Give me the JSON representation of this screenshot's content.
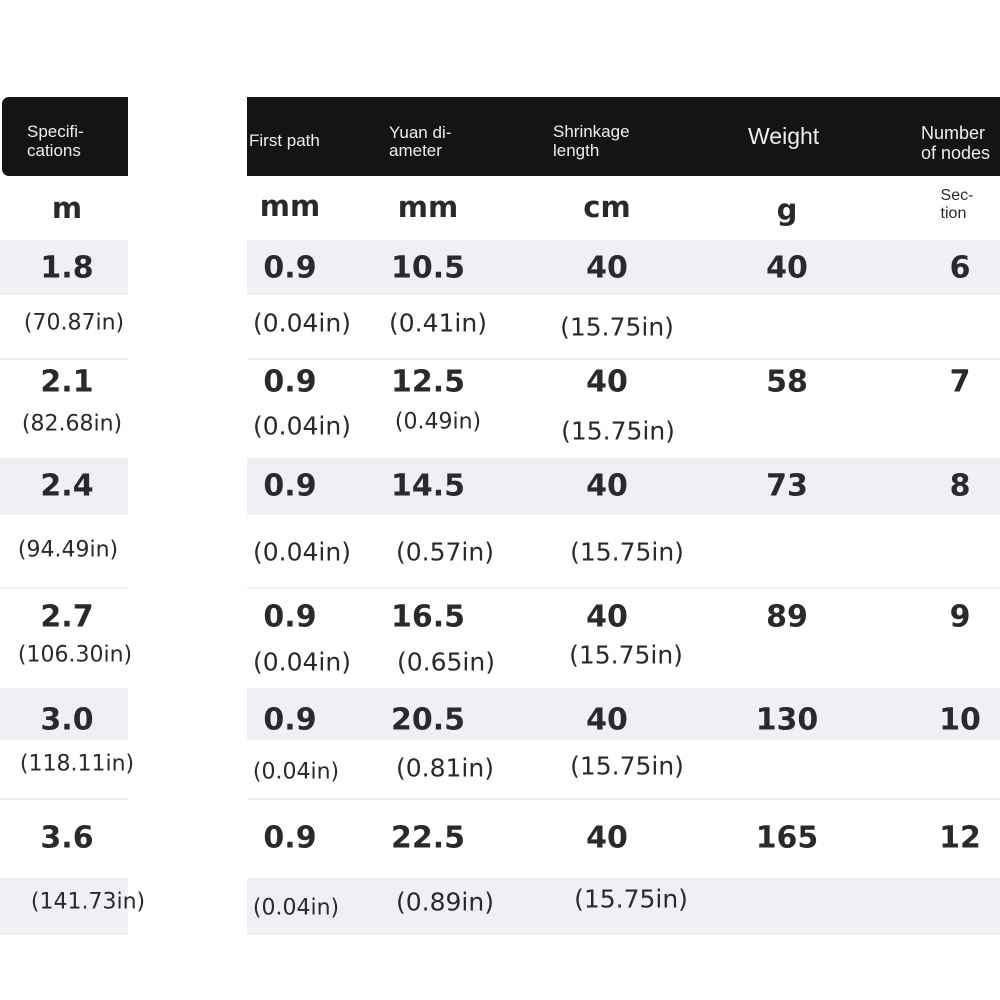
{
  "headers": {
    "specifications": "Specifi-\ncations",
    "first_path": "First path",
    "yuan_diameter": "Yuan di-\nameter",
    "shrinkage_length": "Shrinkage\nlength",
    "weight": "Weight",
    "number_of_nodes": "Number\nof nodes"
  },
  "units": {
    "specifications": "m",
    "first_path": "mm",
    "yuan_diameter": "mm",
    "shrinkage_length": "cm",
    "weight": "g",
    "number_of_nodes": "Sec-\ntion"
  },
  "colors": {
    "header_bg": "#141414",
    "band_bg": "#efeff6"
  },
  "rows": [
    {
      "spec": "1.8",
      "spec_in": "(70.87in)",
      "first": "0.9",
      "first_in": "(0.04in)",
      "yuan": "10.5",
      "yuan_in": "(0.41in)",
      "shrink": "40",
      "shrink_in": "(15.75in)",
      "weight": "40",
      "nodes": "6"
    },
    {
      "spec": "2.1",
      "spec_in": "(82.68in)",
      "first": "0.9",
      "first_in": "(0.04in)",
      "yuan": "12.5",
      "yuan_in": "(0.49in)",
      "shrink": "40",
      "shrink_in": "(15.75in)",
      "weight": "58",
      "nodes": "7"
    },
    {
      "spec": "2.4",
      "spec_in": "(94.49in)",
      "first": "0.9",
      "first_in": "(0.04in)",
      "yuan": "14.5",
      "yuan_in": "(0.57in)",
      "shrink": "40",
      "shrink_in": "(15.75in)",
      "weight": "73",
      "nodes": "8"
    },
    {
      "spec": "2.7",
      "spec_in": "(106.30in)",
      "first": "0.9",
      "first_in": "(0.04in)",
      "yuan": "16.5",
      "yuan_in": "(0.65in)",
      "shrink": "40",
      "shrink_in": "(15.75in)",
      "weight": "89",
      "nodes": "9"
    },
    {
      "spec": "3.0",
      "spec_in": "(118.11in)",
      "first": "0.9",
      "first_in": "(0.04in)",
      "yuan": "20.5",
      "yuan_in": "(0.81in)",
      "shrink": "40",
      "shrink_in": "(15.75in)",
      "weight": "130",
      "nodes": "10"
    },
    {
      "spec": "3.6",
      "spec_in": "(141.73in)",
      "first": "0.9",
      "first_in": "(0.04in)",
      "yuan": "22.5",
      "yuan_in": "(0.89in)",
      "shrink": "40",
      "shrink_in": "(15.75in)",
      "weight": "165",
      "nodes": "12"
    }
  ]
}
